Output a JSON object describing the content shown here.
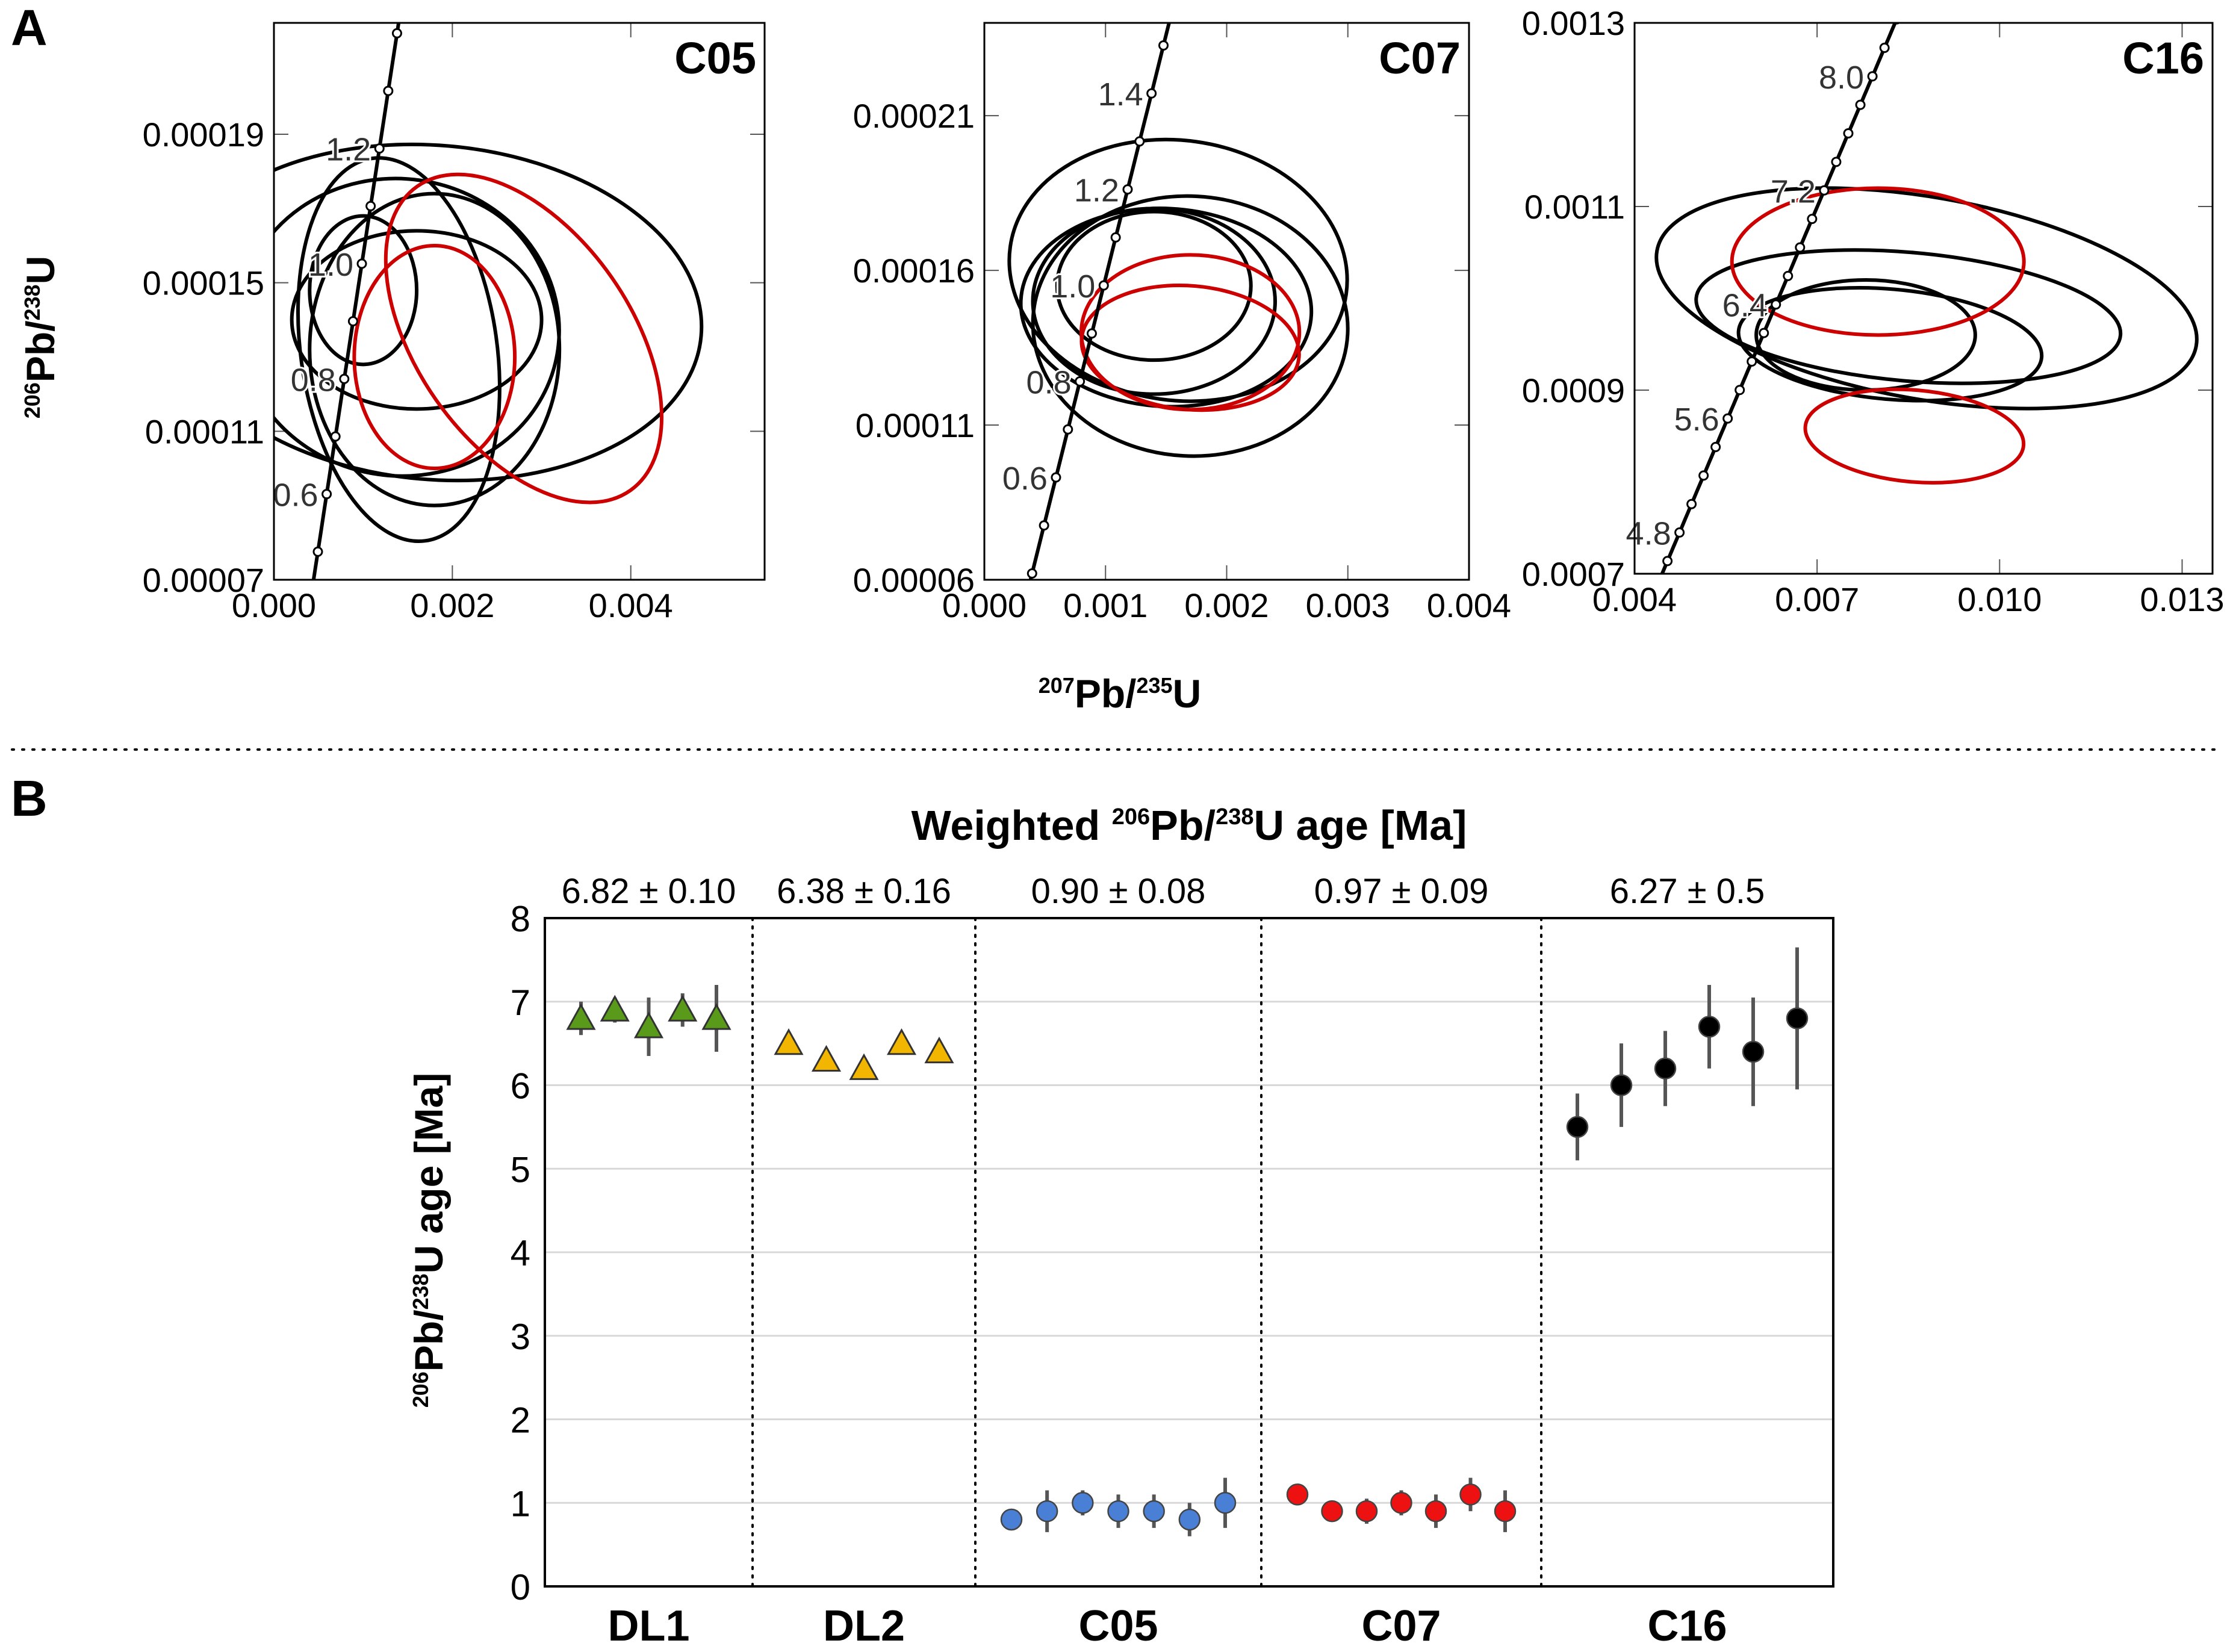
{
  "chart_data": [
    {
      "panel": "A",
      "sample": "C05",
      "type": "scatter",
      "subtype": "concordia",
      "xlim": [
        0.0,
        0.0055
      ],
      "ylim": [
        7e-05,
        0.00022
      ],
      "xticks": [
        0.0,
        0.002,
        0.004
      ],
      "xtick_labels": [
        "0.000",
        "0.002",
        "0.004"
      ],
      "yticks": [
        7e-05,
        0.00011,
        0.00015,
        0.00019
      ],
      "ytick_labels": [
        "0.00007",
        "0.00011",
        "0.00015",
        "0.00019"
      ],
      "concordia_labels": [
        {
          "age": 0.6,
          "label": "0.6"
        },
        {
          "age": 0.8,
          "label": "0.8"
        },
        {
          "age": 1.0,
          "label": "1.0"
        },
        {
          "age": 1.2,
          "label": "1.2"
        }
      ],
      "ellipses": [
        {
          "cx": 0.0018,
          "cy": 0.000142,
          "rx": 0.003,
          "ry": 4.5e-05,
          "rot": -5,
          "color": "#000000"
        },
        {
          "cx": 0.0014,
          "cy": 0.000138,
          "rx": 0.0018,
          "ry": 4e-05,
          "rot": -8,
          "color": "#000000"
        },
        {
          "cx": 0.0018,
          "cy": 0.000132,
          "rx": 0.0014,
          "ry": 4.2e-05,
          "rot": 0,
          "color": "#000000"
        },
        {
          "cx": 0.0014,
          "cy": 0.000132,
          "rx": 0.0011,
          "ry": 5.2e-05,
          "rot": 8,
          "color": "#000000"
        },
        {
          "cx": 0.0016,
          "cy": 0.00014,
          "rx": 0.0014,
          "ry": 2.4e-05,
          "rot": 0,
          "color": "#000000"
        },
        {
          "cx": 0.001,
          "cy": 0.000148,
          "rx": 0.0006,
          "ry": 2e-05,
          "rot": 0,
          "color": "#000000"
        },
        {
          "cx": 0.0018,
          "cy": 0.00013,
          "rx": 0.0009,
          "ry": 3e-05,
          "rot": 0,
          "color": "#cc0000"
        },
        {
          "cx": 0.0028,
          "cy": 0.000135,
          "rx": 0.0012,
          "ry": 5e-05,
          "rot": 35,
          "color": "#cc0000"
        }
      ],
      "title": "C05"
    },
    {
      "panel": "A",
      "sample": "C07",
      "type": "scatter",
      "subtype": "concordia",
      "xlim": [
        0.0,
        0.004
      ],
      "ylim": [
        6e-05,
        0.00024
      ],
      "xticks": [
        0.0,
        0.001,
        0.002,
        0.003,
        0.004
      ],
      "xtick_labels": [
        "0.000",
        "0.001",
        "0.002",
        "0.003",
        "0.004"
      ],
      "yticks": [
        6e-05,
        0.00011,
        0.00016,
        0.00021
      ],
      "ytick_labels": [
        "0.00006",
        "0.00011",
        "0.00016",
        "0.00021"
      ],
      "concordia_labels": [
        {
          "age": 0.6,
          "label": "0.6"
        },
        {
          "age": 0.8,
          "label": "0.8"
        },
        {
          "age": 1.0,
          "label": "1.0"
        },
        {
          "age": 1.2,
          "label": "1.2"
        },
        {
          "age": 1.4,
          "label": "1.4"
        }
      ],
      "ellipses": [
        {
          "cx": 0.0016,
          "cy": 0.00016,
          "rx": 0.0014,
          "ry": 4.2e-05,
          "rot": -8,
          "color": "#000000"
        },
        {
          "cx": 0.0017,
          "cy": 0.000142,
          "rx": 0.0013,
          "ry": 4.2e-05,
          "rot": -3,
          "color": "#000000"
        },
        {
          "cx": 0.0014,
          "cy": 0.00015,
          "rx": 0.001,
          "ry": 3e-05,
          "rot": 0,
          "color": "#000000"
        },
        {
          "cx": 0.0014,
          "cy": 0.000155,
          "rx": 0.0008,
          "ry": 2.4e-05,
          "rot": 0,
          "color": "#000000"
        },
        {
          "cx": 0.0015,
          "cy": 0.000148,
          "rx": 0.0012,
          "ry": 3.2e-05,
          "rot": -3,
          "color": "#000000"
        },
        {
          "cx": 0.0017,
          "cy": 0.00014,
          "rx": 0.0009,
          "ry": 2.5e-05,
          "rot": 0,
          "color": "#cc0000"
        },
        {
          "cx": 0.0017,
          "cy": 0.000135,
          "rx": 0.0009,
          "ry": 2e-05,
          "rot": -5,
          "color": "#cc0000"
        }
      ],
      "title": "C07"
    },
    {
      "panel": "A",
      "sample": "C16",
      "type": "scatter",
      "subtype": "concordia",
      "xlim": [
        0.004,
        0.0135
      ],
      "ylim": [
        0.0007,
        0.0013
      ],
      "xticks": [
        0.004,
        0.007,
        0.01,
        0.013
      ],
      "xtick_labels": [
        "0.004",
        "0.007",
        "0.010",
        "0.013"
      ],
      "yticks": [
        0.0007,
        0.0009,
        0.0011,
        0.0013
      ],
      "ytick_labels": [
        "0.0007",
        "0.0009",
        "0.0011",
        "0.0013"
      ],
      "concordia_labels": [
        {
          "age": 4.8,
          "label": "4.8"
        },
        {
          "age": 5.6,
          "label": "5.6"
        },
        {
          "age": 6.4,
          "label": "6.4"
        },
        {
          "age": 7.2,
          "label": "7.2"
        },
        {
          "age": 8.0,
          "label": "8.0"
        }
      ],
      "ellipses": [
        {
          "cx": 0.0088,
          "cy": 0.001,
          "rx": 0.0045,
          "ry": 0.00011,
          "rot": -10,
          "color": "#000000"
        },
        {
          "cx": 0.0085,
          "cy": 0.00098,
          "rx": 0.0035,
          "ry": 7e-05,
          "rot": -5,
          "color": "#000000"
        },
        {
          "cx": 0.0082,
          "cy": 0.00095,
          "rx": 0.0025,
          "ry": 6e-05,
          "rot": -5,
          "color": "#000000"
        },
        {
          "cx": 0.0078,
          "cy": 0.00096,
          "rx": 0.0018,
          "ry": 6e-05,
          "rot": 0,
          "color": "#000000"
        },
        {
          "cx": 0.008,
          "cy": 0.00104,
          "rx": 0.0024,
          "ry": 8e-05,
          "rot": 0,
          "color": "#cc0000"
        },
        {
          "cx": 0.0086,
          "cy": 0.00085,
          "rx": 0.0018,
          "ry": 5e-05,
          "rot": -5,
          "color": "#cc0000"
        }
      ],
      "title": "C16"
    },
    {
      "panel": "B",
      "type": "scatter",
      "subtype": "errorbar",
      "title": "Weighted ²⁰⁶Pb/²³⁸U age [Ma]",
      "ylabel": "²⁰⁶Pb/²³⁸U age [Ma]",
      "ylim": [
        0,
        8
      ],
      "yticks": [
        0,
        1,
        2,
        3,
        4,
        5,
        6,
        7,
        8
      ],
      "grid": true,
      "groups": [
        {
          "name": "DL1",
          "weighted_age": "6.82 ± 0.10",
          "marker": "triangle",
          "color": "#5a9a1a",
          "values": [
            6.8,
            6.9,
            6.7,
            6.9,
            6.8
          ],
          "errors": [
            0.2,
            0.15,
            0.35,
            0.2,
            0.4
          ]
        },
        {
          "name": "DL2",
          "weighted_age": "6.38 ± 0.16",
          "marker": "triangle",
          "color": "#f2b600",
          "values": [
            6.5,
            6.3,
            6.2,
            6.5,
            6.4
          ],
          "errors": [
            0,
            0,
            0,
            0,
            0
          ]
        },
        {
          "name": "C05",
          "weighted_age": "0.90 ± 0.08",
          "marker": "circle",
          "color": "#4a7fd6",
          "values": [
            0.8,
            0.9,
            1.0,
            0.9,
            0.9,
            0.8,
            1.0
          ],
          "errors": [
            0.1,
            0.25,
            0.15,
            0.2,
            0.2,
            0.2,
            0.3
          ]
        },
        {
          "name": "C07",
          "weighted_age": "0.97 ± 0.09",
          "marker": "circle",
          "color": "#ee1111",
          "values": [
            1.1,
            0.9,
            0.9,
            1.0,
            0.9,
            1.1,
            0.9
          ],
          "errors": [
            0.1,
            0.1,
            0.15,
            0.15,
            0.2,
            0.2,
            0.25
          ]
        },
        {
          "name": "C16",
          "weighted_age": "6.27 ± 0.5",
          "marker": "circle",
          "color": "#000000",
          "values": [
            5.5,
            6.0,
            6.2,
            6.7,
            6.4,
            6.8
          ],
          "errors": [
            0.4,
            0.5,
            0.45,
            0.5,
            0.65,
            0.85
          ]
        }
      ]
    }
  ],
  "figure": {
    "panel_labels": {
      "a": "A",
      "b": "B"
    },
    "panel_a_xlabel_sup": "207",
    "panel_a_xlabel_mid": "Pb/",
    "panel_a_xlabel_sup2": "235",
    "panel_a_xlabel_end": "U",
    "panel_a_ylabel_sup": "206",
    "panel_a_ylabel_mid": "Pb/",
    "panel_a_ylabel_sup2": "238",
    "panel_a_ylabel_end": "U",
    "panel_b_title_pre": "Weighted ",
    "panel_b_title_sup": "206",
    "panel_b_title_mid": "Pb/",
    "panel_b_title_sup2": "238",
    "panel_b_title_end": "U age [Ma]",
    "panel_b_ylabel_sup": "206",
    "panel_b_ylabel_mid": "Pb/",
    "panel_b_ylabel_sup2": "238",
    "panel_b_ylabel_end": "U age  [Ma]"
  }
}
